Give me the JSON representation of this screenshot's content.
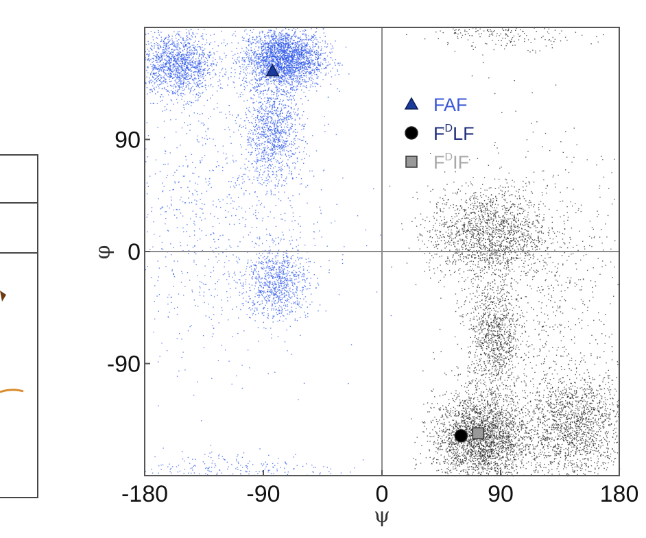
{
  "chart_data": {
    "type": "scatter",
    "title": "",
    "xlabel": "ψ",
    "ylabel": "φ",
    "xlim": [
      -180,
      180
    ],
    "ylim": [
      -180,
      180
    ],
    "x_ticks": [
      -180,
      -90,
      0,
      90,
      180
    ],
    "y_ticks": [
      90,
      0,
      -90
    ],
    "x_tick_labels": [
      "-180",
      "-90",
      "0",
      "90",
      "180"
    ],
    "y_tick_labels": [
      "90",
      "0",
      "-90"
    ],
    "grid": false,
    "reference_lines": [
      {
        "axis": "x",
        "value": 0
      },
      {
        "axis": "y",
        "value": 0
      }
    ],
    "density_clusters": [
      {
        "color": "#2b55e8",
        "center": [
          -75,
          155
        ],
        "spread": [
          15,
          12
        ],
        "weight": 4.0
      },
      {
        "color": "#2b55e8",
        "center": [
          -155,
          150
        ],
        "spread": [
          14,
          13
        ],
        "weight": 2.2
      },
      {
        "color": "#2b55e8",
        "center": [
          -83,
          95
        ],
        "spread": [
          11,
          20
        ],
        "weight": 1.6
      },
      {
        "color": "#2b55e8",
        "center": [
          -80,
          -25
        ],
        "spread": [
          12,
          15
        ],
        "weight": 1.3
      },
      {
        "color": "#2b55e8",
        "center": [
          -130,
          30
        ],
        "spread": [
          45,
          60
        ],
        "weight": 1.5
      },
      {
        "color": "#2b55e8",
        "center": [
          -110,
          -175
        ],
        "spread": [
          40,
          8
        ],
        "weight": 0.4
      },
      {
        "color": "#222222",
        "center": [
          75,
          -150
        ],
        "spread": [
          18,
          18
        ],
        "weight": 4.0
      },
      {
        "color": "#222222",
        "center": [
          145,
          -140
        ],
        "spread": [
          20,
          22
        ],
        "weight": 2.6
      },
      {
        "color": "#222222",
        "center": [
          80,
          15
        ],
        "spread": [
          22,
          18
        ],
        "weight": 2.4
      },
      {
        "color": "#222222",
        "center": [
          85,
          -70
        ],
        "spread": [
          10,
          25
        ],
        "weight": 1.5
      },
      {
        "color": "#222222",
        "center": [
          95,
          180
        ],
        "spread": [
          30,
          8
        ],
        "weight": 0.5
      },
      {
        "color": "#222222",
        "center": [
          120,
          -30
        ],
        "spread": [
          35,
          60
        ],
        "weight": 1.2
      }
    ],
    "legend": {
      "placement": "top-right",
      "items": [
        {
          "label_main": "FAF",
          "label_sup": "",
          "label_rest": "",
          "marker": "triangle",
          "marker_color": "#1a3a9c",
          "text_color": "#3a58d6"
        },
        {
          "label_main": "F",
          "label_sup": "D",
          "label_rest": "LF",
          "marker": "circle",
          "marker_color": "#000000",
          "text_color": "#1e2f7a"
        },
        {
          "label_main": "F",
          "label_sup": "D",
          "label_rest": "IF",
          "marker": "square",
          "marker_color": "#999999",
          "text_color": "#a8a8a8"
        }
      ]
    },
    "highlighted_points": [
      {
        "name": "FAF",
        "x": -83,
        "y": 145,
        "marker": "triangle",
        "color": "#1a3a9c"
      },
      {
        "name": "FDLF",
        "x": 60,
        "y": -148,
        "marker": "circle",
        "color": "#000000"
      },
      {
        "name": "FDIF",
        "x": 73,
        "y": -146,
        "marker": "square",
        "color": "#999999"
      }
    ]
  },
  "colors": {
    "frame": "#555555",
    "zero_lines": "#8a8a8a",
    "left_panel": "#444444",
    "left_panel_accent": "#d98a2a"
  }
}
